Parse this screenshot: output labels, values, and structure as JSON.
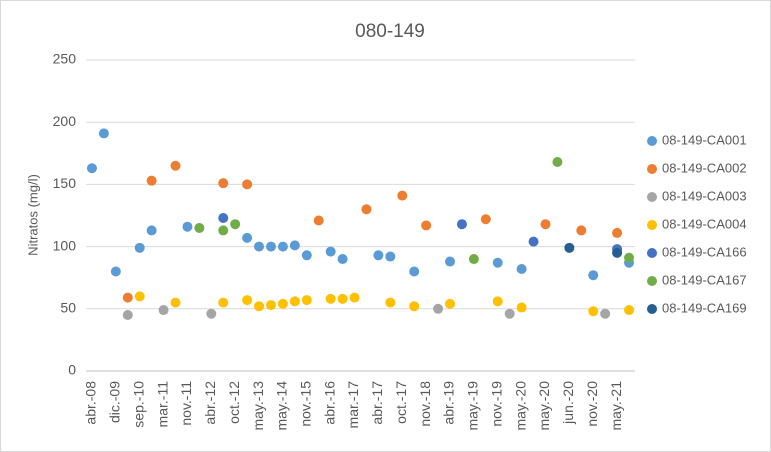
{
  "chart_data": {
    "type": "scatter",
    "title": "080-149",
    "y_label": "Nitratos (mg/l)",
    "categories": [
      "abr.-08",
      null,
      "dic.-09",
      null,
      "sep.-10",
      null,
      "mar.-11",
      null,
      "nov.-11",
      null,
      "abr.-12",
      null,
      "oct.-12",
      null,
      "may.-13",
      null,
      "may.-14",
      null,
      "nov.-15",
      null,
      "abr.-16",
      null,
      "mar.-17",
      null,
      "abr.-17",
      null,
      "oct.-17",
      null,
      "nov.-18",
      null,
      "abr.-19",
      null,
      "may.-19",
      null,
      "nov.-19",
      null,
      "may.-20",
      null,
      "may.-20",
      null,
      "jun.-20",
      null,
      "nov.-20",
      null,
      "may.-21",
      null
    ],
    "series": [
      {
        "name": "08-149-CA001",
        "color": "#5b9bd5",
        "values": [
          163,
          191,
          80,
          null,
          99,
          113,
          null,
          null,
          116,
          null,
          null,
          null,
          null,
          107,
          100,
          100,
          100,
          101,
          93,
          null,
          96,
          90,
          null,
          null,
          93,
          92,
          null,
          80,
          null,
          null,
          88,
          null,
          null,
          null,
          87,
          null,
          82,
          null,
          null,
          null,
          null,
          null,
          77,
          null,
          null,
          87
        ]
      },
      {
        "name": "08-149-CA002",
        "color": "#ed7d31",
        "values": [
          null,
          null,
          null,
          59,
          null,
          153,
          null,
          165,
          null,
          null,
          null,
          151,
          null,
          150,
          null,
          null,
          null,
          null,
          null,
          121,
          null,
          null,
          null,
          130,
          null,
          null,
          141,
          null,
          117,
          null,
          null,
          null,
          null,
          122,
          null,
          null,
          null,
          null,
          118,
          null,
          null,
          113,
          null,
          null,
          111,
          null
        ]
      },
      {
        "name": "08-149-CA003",
        "color": "#a5a5a5",
        "values": [
          null,
          null,
          null,
          45,
          null,
          null,
          49,
          null,
          null,
          null,
          46,
          null,
          null,
          null,
          null,
          null,
          null,
          null,
          null,
          null,
          null,
          null,
          null,
          null,
          null,
          null,
          null,
          null,
          null,
          50,
          null,
          null,
          null,
          null,
          null,
          46,
          null,
          null,
          null,
          null,
          null,
          null,
          null,
          46,
          null,
          null
        ]
      },
      {
        "name": "08-149-CA004",
        "color": "#ffc000",
        "values": [
          null,
          null,
          null,
          null,
          60,
          null,
          null,
          55,
          null,
          null,
          null,
          55,
          null,
          57,
          52,
          53,
          54,
          56,
          57,
          null,
          58,
          58,
          59,
          null,
          null,
          55,
          null,
          52,
          null,
          null,
          54,
          null,
          null,
          null,
          56,
          null,
          51,
          null,
          null,
          null,
          null,
          null,
          48,
          null,
          null,
          49
        ]
      },
      {
        "name": "08-149-CA166",
        "color": "#4472c4",
        "values": [
          null,
          null,
          null,
          null,
          null,
          null,
          null,
          null,
          null,
          null,
          null,
          123,
          null,
          null,
          null,
          null,
          null,
          null,
          null,
          null,
          null,
          null,
          null,
          null,
          null,
          null,
          null,
          null,
          null,
          null,
          null,
          118,
          null,
          null,
          null,
          null,
          null,
          104,
          null,
          null,
          null,
          null,
          null,
          null,
          98,
          null
        ]
      },
      {
        "name": "08-149-CA167",
        "color": "#70ad47",
        "values": [
          null,
          null,
          null,
          null,
          null,
          null,
          null,
          null,
          null,
          115,
          null,
          113,
          118,
          null,
          null,
          null,
          null,
          null,
          null,
          null,
          null,
          null,
          null,
          null,
          null,
          null,
          null,
          null,
          null,
          null,
          null,
          null,
          90,
          null,
          null,
          null,
          null,
          null,
          null,
          168,
          null,
          null,
          null,
          null,
          null,
          91
        ]
      },
      {
        "name": "08-149-CA169",
        "color": "#255e91",
        "values": [
          null,
          null,
          null,
          null,
          null,
          null,
          null,
          null,
          null,
          null,
          null,
          null,
          null,
          null,
          null,
          null,
          null,
          null,
          null,
          null,
          null,
          null,
          null,
          null,
          null,
          null,
          null,
          null,
          null,
          null,
          null,
          null,
          null,
          null,
          null,
          null,
          null,
          null,
          null,
          null,
          99,
          null,
          null,
          null,
          95,
          null
        ]
      }
    ],
    "ylim": [
      0,
      250
    ],
    "yticks": [
      0,
      50,
      100,
      150,
      200,
      250
    ],
    "grid": true,
    "legend": "right"
  }
}
